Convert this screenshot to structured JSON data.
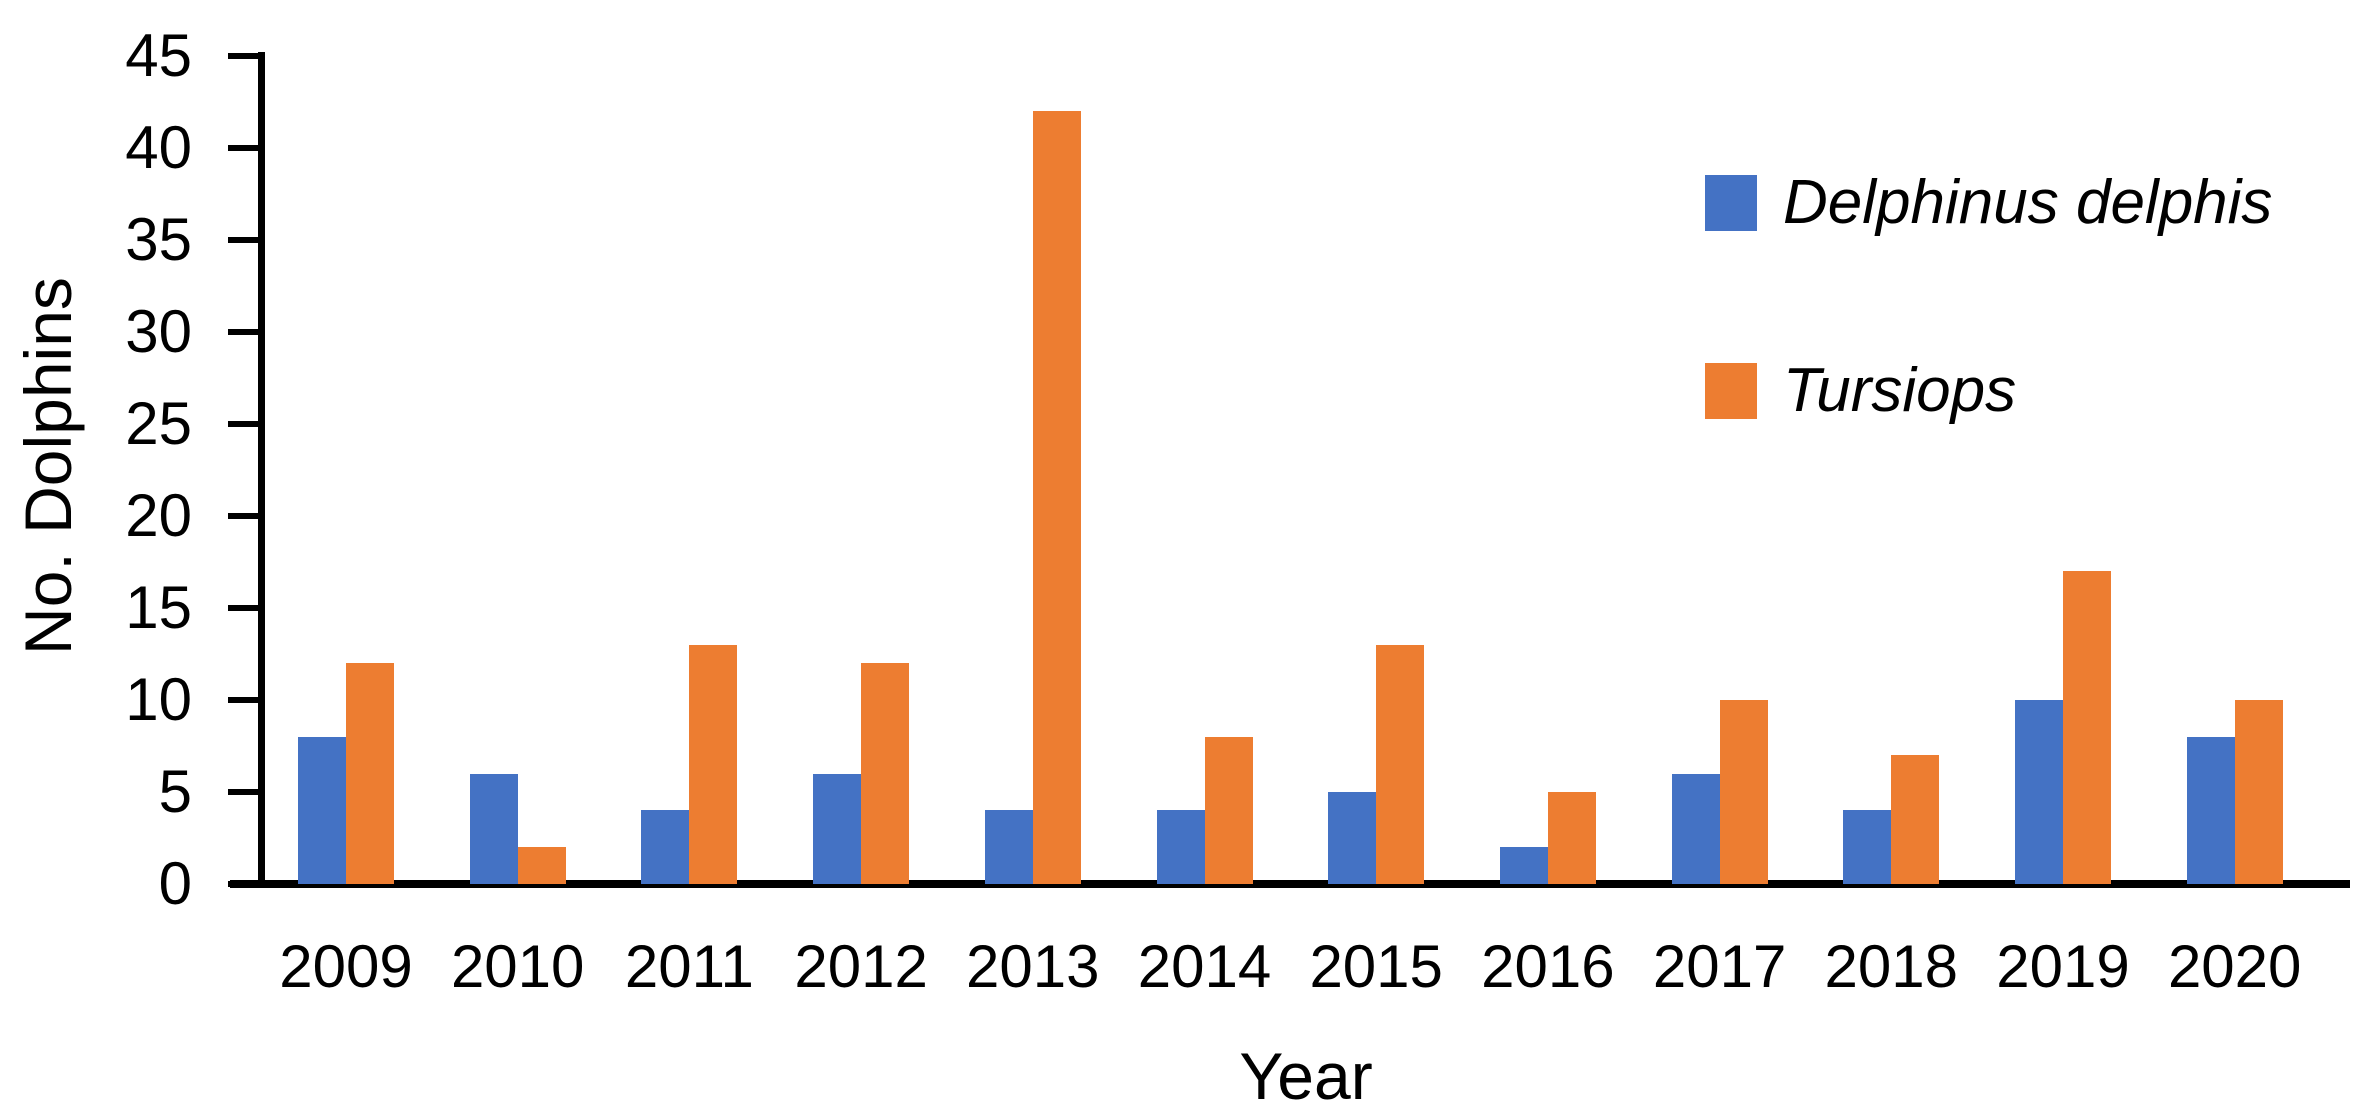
{
  "chart_data": {
    "type": "bar",
    "title": "",
    "xlabel": "Year",
    "ylabel": "No. Dolphins",
    "categories": [
      "2009",
      "2010",
      "2011",
      "2012",
      "2013",
      "2014",
      "2015",
      "2016",
      "2017",
      "2018",
      "2019",
      "2020"
    ],
    "series": [
      {
        "name": "Delphinus delphis",
        "color": "#4472C4",
        "values": [
          8,
          6,
          4,
          6,
          4,
          4,
          5,
          2,
          6,
          4,
          10,
          8
        ]
      },
      {
        "name": "Tursiops",
        "color": "#ED7D31",
        "values": [
          12,
          2,
          13,
          12,
          42,
          8,
          13,
          5,
          10,
          7,
          17,
          10
        ]
      }
    ],
    "ylim": [
      0,
      45
    ],
    "ytick_step": 5,
    "yticks": [
      0,
      5,
      10,
      15,
      20,
      25,
      30,
      35,
      40,
      45
    ],
    "legend_position": "top-right",
    "legend_style": "italic",
    "grid": false,
    "axis_color": "#000000",
    "background_color": "#ffffff"
  }
}
